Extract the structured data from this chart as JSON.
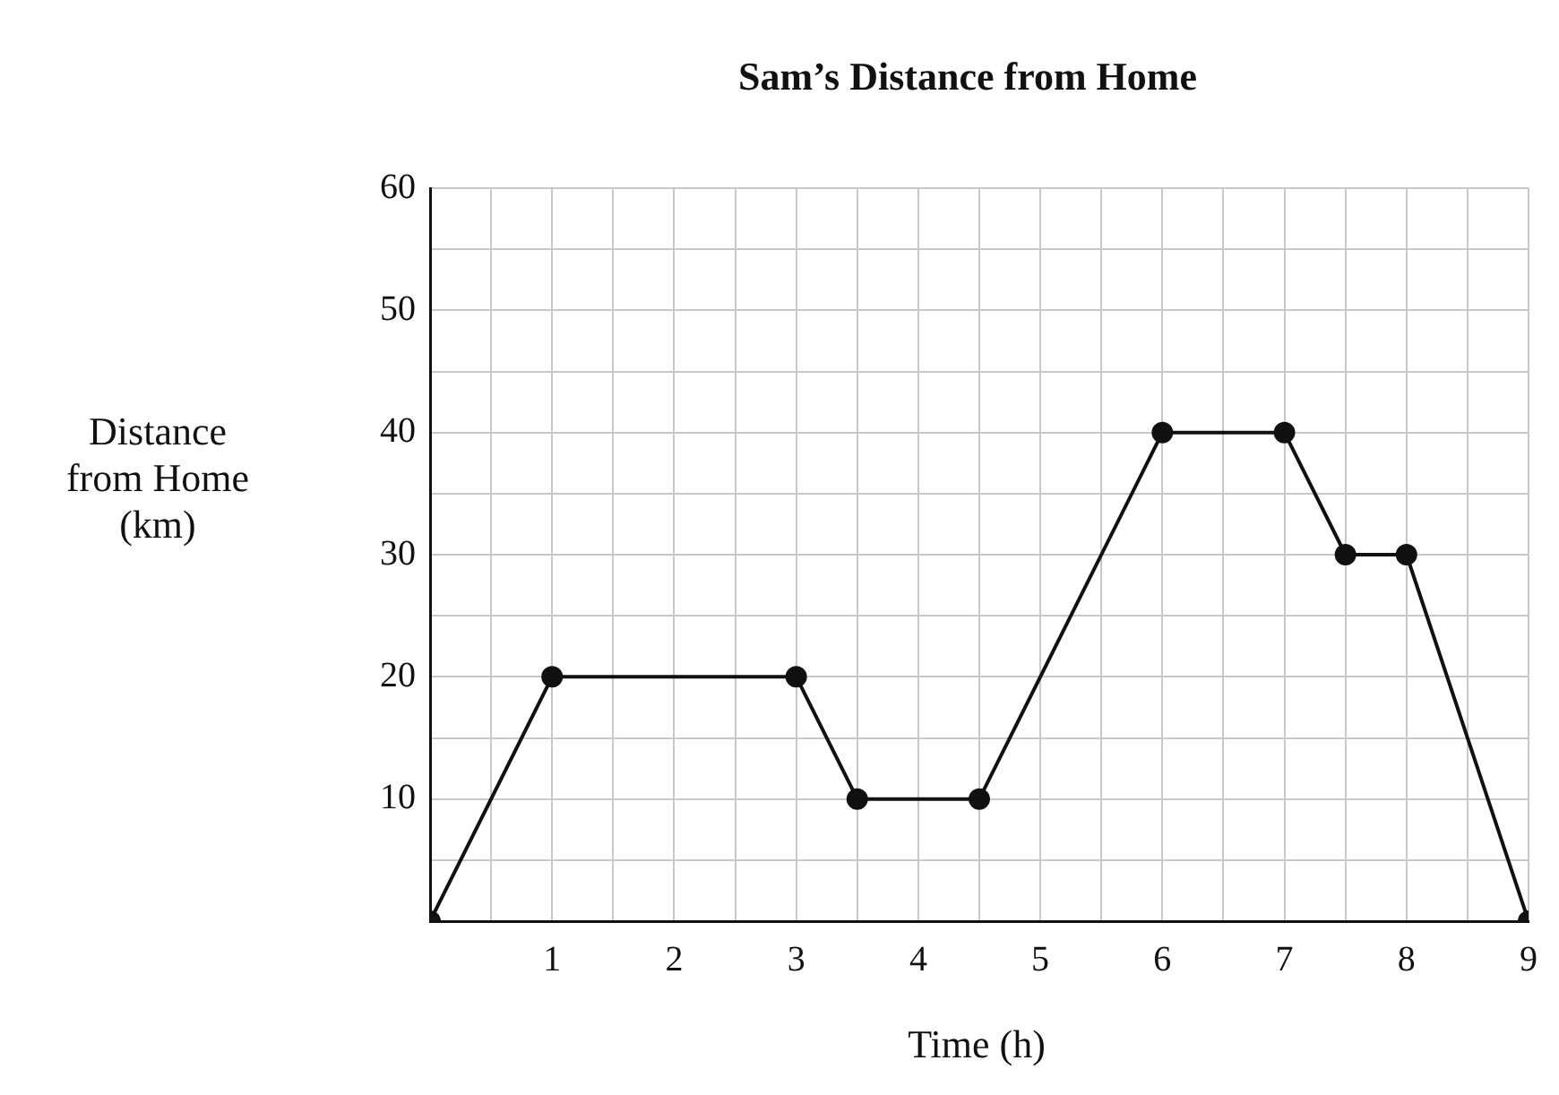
{
  "chart_data": {
    "type": "line",
    "title": "Sam’s Distance from Home",
    "xlabel": "Time (h)",
    "ylabel": "Distance\nfrom Home\n(km)",
    "x": [
      0,
      1,
      3,
      3.5,
      4.5,
      6,
      7,
      7.5,
      8,
      9
    ],
    "series": [
      {
        "color": "#111111",
        "values": [
          0,
          20,
          20,
          10,
          10,
          40,
          40,
          30,
          30,
          0
        ]
      }
    ],
    "xlim": [
      0,
      9
    ],
    "ylim": [
      0,
      60
    ],
    "xticks": [
      {
        "value": 0,
        "label": null
      },
      {
        "value": 0.5,
        "label": null
      },
      1,
      {
        "value": 1.5,
        "label": null
      },
      2,
      {
        "value": 2.5,
        "label": null
      },
      3,
      {
        "value": 3.5,
        "label": null
      },
      4,
      {
        "value": 4.5,
        "label": null
      },
      5,
      {
        "value": 5.5,
        "label": null
      },
      6,
      {
        "value": 6.5,
        "label": null
      },
      7,
      {
        "value": 7.5,
        "label": null
      },
      8,
      {
        "value": 8.5,
        "label": null
      },
      9
    ],
    "yticks": [
      {
        "value": 0,
        "label": null
      },
      {
        "value": 5,
        "label": null
      },
      10,
      {
        "value": 15,
        "label": null
      },
      20,
      {
        "value": 25,
        "label": null
      },
      30,
      {
        "value": 35,
        "label": null
      },
      40,
      {
        "value": 45,
        "label": null
      },
      50,
      {
        "value": 55,
        "label": null
      },
      60
    ],
    "grid": true,
    "legend": false,
    "marker": "circle",
    "line_style": "solid"
  }
}
